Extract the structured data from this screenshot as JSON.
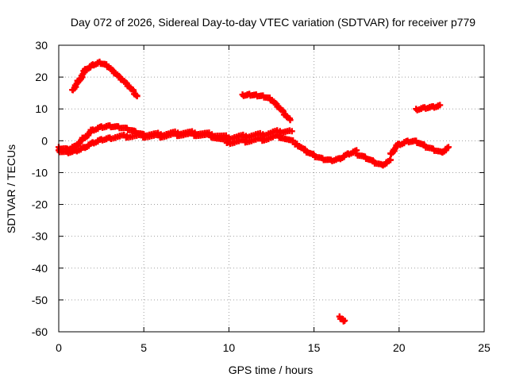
{
  "chart_data": {
    "type": "scatter",
    "title": "Day 072 of 2026, Sidereal Day-to-day VTEC variation (SDTVAR) for receiver p779",
    "xlabel": "GPS time / hours",
    "ylabel": "SDTVAR / TECUs",
    "xlim": [
      0,
      25
    ],
    "ylim": [
      -60,
      30
    ],
    "xticks": [
      0,
      5,
      10,
      15,
      20,
      25
    ],
    "yticks": [
      30,
      20,
      10,
      0,
      -10,
      -20,
      -30,
      -40,
      -50,
      -60
    ],
    "xtick_labels": [
      "0",
      "5",
      "10",
      "15",
      "20",
      "25"
    ],
    "ytick_labels": [
      "30",
      "20",
      "10",
      "0",
      "-10",
      "-20",
      "-30",
      "-40",
      "-50",
      "-60"
    ],
    "grid": true,
    "marker": "plus",
    "color": "#ff0000",
    "series": [
      {
        "name": "arc-early-high",
        "x": [
          0.8,
          1.2,
          1.6,
          2.0,
          2.4,
          2.8,
          3.2,
          3.6,
          4.0,
          4.4,
          4.6
        ],
        "y": [
          16,
          19,
          22.5,
          24,
          24.8,
          24,
          22,
          20,
          18,
          15.5,
          14
        ]
      },
      {
        "name": "arc-main-upper",
        "x": [
          0,
          0.5,
          1.0,
          1.5,
          2.0,
          2.5,
          3.0,
          3.5,
          4.0,
          4.5,
          5.0,
          6.0,
          7.0,
          8.0,
          9.0,
          10.0,
          11.0,
          12.0,
          13.0,
          13.7
        ],
        "y": [
          -2,
          -2.5,
          -1.5,
          1,
          3.5,
          4.5,
          4.8,
          4.5,
          4,
          3,
          2,
          2,
          2.5,
          2.5,
          2,
          1,
          1.5,
          2,
          3,
          3
        ]
      },
      {
        "name": "arc-main-lower",
        "x": [
          0,
          0.5,
          1.0,
          1.5,
          2.0,
          2.5,
          3.0,
          4.0,
          5.0,
          6.0,
          7.0,
          8.0,
          9.0,
          10.0,
          11.0,
          12.0,
          13.0,
          14.0
        ],
        "y": [
          -3,
          -3.5,
          -3,
          -2,
          -0.5,
          0.5,
          1,
          1.5,
          1.5,
          1.5,
          2,
          2,
          1.5,
          -0.5,
          0,
          0.5,
          1.5,
          -1
        ]
      },
      {
        "name": "arc-midday-high",
        "x": [
          10.8,
          11.2,
          11.6,
          12.0,
          12.4,
          12.8,
          13.2,
          13.6
        ],
        "y": [
          14.5,
          14.7,
          14.5,
          14.2,
          13.5,
          11.5,
          9,
          6.5
        ]
      },
      {
        "name": "arc-afternoon-neg",
        "x": [
          14.0,
          14.5,
          15.0,
          15.5,
          16.0,
          16.5,
          17.0,
          17.5
        ],
        "y": [
          -1,
          -3,
          -4.5,
          -5.5,
          -6,
          -5.5,
          -4,
          -3
        ]
      },
      {
        "name": "arc-evening-neg",
        "x": [
          17.5,
          18.0,
          18.5,
          19.0,
          19.5
        ],
        "y": [
          -4,
          -5,
          -6.5,
          -7.5,
          -6
        ]
      },
      {
        "name": "arc-evening-rise",
        "x": [
          19.5,
          20.0,
          20.5,
          21.0,
          21.5,
          22.0,
          22.5,
          22.9
        ],
        "y": [
          -4,
          -1,
          0,
          0,
          -1.5,
          -2.5,
          -3.5,
          -2
        ]
      },
      {
        "name": "arc-late-high",
        "x": [
          21.0,
          21.5,
          22.0,
          22.4
        ],
        "y": [
          10,
          10.5,
          10.8,
          11.2
        ]
      },
      {
        "name": "outlier",
        "x": [
          16.5,
          16.7,
          16.8
        ],
        "y": [
          -55.2,
          -56,
          -56.5
        ]
      }
    ]
  }
}
